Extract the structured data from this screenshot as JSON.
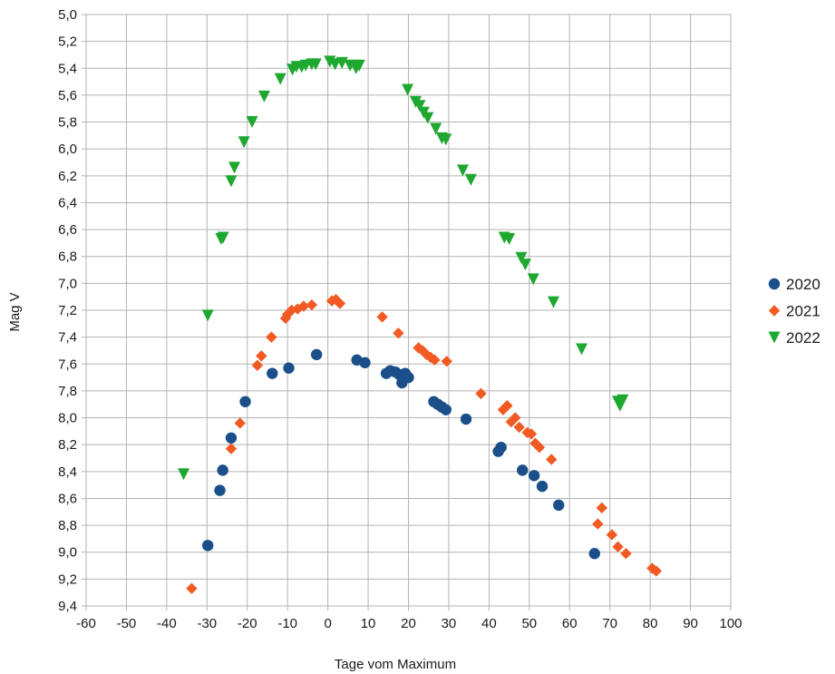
{
  "chart_data": {
    "type": "scatter",
    "xlabel": "Tage vom Maximum",
    "ylabel": "Mag V",
    "xlim": [
      -60,
      100
    ],
    "ylim": [
      5.0,
      9.4
    ],
    "y_inverted": true,
    "grid": true,
    "legend_position": "right",
    "x_ticks": [
      "-60",
      "-50",
      "-40",
      "-30",
      "-20",
      "-10",
      "0",
      "10",
      "20",
      "30",
      "40",
      "50",
      "60",
      "70",
      "80",
      "90",
      "100"
    ],
    "y_ticks": [
      "5,0",
      "5,2",
      "5,4",
      "5,6",
      "5,8",
      "6,0",
      "6,2",
      "6,4",
      "6,6",
      "6,8",
      "7,0",
      "7,2",
      "7,4",
      "7,6",
      "7,8",
      "8,0",
      "8,2",
      "8,4",
      "8,6",
      "8,8",
      "9,0",
      "9,2",
      "9,4"
    ],
    "series": [
      {
        "name": "2020",
        "color": "#1a4f8a",
        "marker": "circle",
        "points": [
          [
            -29.8,
            8.95
          ],
          [
            -26.8,
            8.54
          ],
          [
            -26.1,
            8.39
          ],
          [
            -24.0,
            8.15
          ],
          [
            -20.5,
            7.88
          ],
          [
            -13.8,
            7.67
          ],
          [
            -9.7,
            7.63
          ],
          [
            -2.8,
            7.53
          ],
          [
            7.2,
            7.57
          ],
          [
            9.2,
            7.59
          ],
          [
            14.5,
            7.67
          ],
          [
            15.5,
            7.65
          ],
          [
            16.8,
            7.66
          ],
          [
            17.8,
            7.68
          ],
          [
            18.4,
            7.74
          ],
          [
            19.2,
            7.67
          ],
          [
            20.0,
            7.7
          ],
          [
            26.3,
            7.88
          ],
          [
            27.3,
            7.9
          ],
          [
            28.3,
            7.92
          ],
          [
            29.3,
            7.94
          ],
          [
            34.3,
            8.01
          ],
          [
            42.3,
            8.25
          ],
          [
            43.0,
            8.22
          ],
          [
            48.3,
            8.39
          ],
          [
            51.2,
            8.43
          ],
          [
            53.2,
            8.51
          ],
          [
            57.3,
            8.65
          ],
          [
            66.2,
            9.01
          ]
        ]
      },
      {
        "name": "2021",
        "color": "#f15a22",
        "marker": "diamond",
        "points": [
          [
            -33.8,
            9.27
          ],
          [
            -24.0,
            8.23
          ],
          [
            -21.8,
            8.04
          ],
          [
            -17.5,
            7.61
          ],
          [
            -16.5,
            7.54
          ],
          [
            -14.0,
            7.4
          ],
          [
            -10.5,
            7.26
          ],
          [
            -10.0,
            7.23
          ],
          [
            -9.0,
            7.2
          ],
          [
            -7.5,
            7.19
          ],
          [
            -6.0,
            7.17
          ],
          [
            -4.0,
            7.16
          ],
          [
            1.0,
            7.13
          ],
          [
            2.0,
            7.12
          ],
          [
            3.0,
            7.15
          ],
          [
            13.5,
            7.25
          ],
          [
            17.5,
            7.37
          ],
          [
            22.5,
            7.48
          ],
          [
            23.5,
            7.5
          ],
          [
            24.5,
            7.53
          ],
          [
            25.5,
            7.55
          ],
          [
            26.5,
            7.57
          ],
          [
            29.5,
            7.58
          ],
          [
            38.0,
            7.82
          ],
          [
            43.5,
            7.94
          ],
          [
            44.5,
            7.91
          ],
          [
            45.5,
            8.03
          ],
          [
            46.5,
            8.0
          ],
          [
            47.5,
            8.07
          ],
          [
            49.5,
            8.11
          ],
          [
            50.5,
            8.12
          ],
          [
            51.5,
            8.19
          ],
          [
            52.5,
            8.22
          ],
          [
            55.5,
            8.31
          ],
          [
            67.0,
            8.79
          ],
          [
            68.0,
            8.67
          ],
          [
            70.5,
            8.87
          ],
          [
            72.0,
            8.96
          ],
          [
            74.0,
            9.01
          ],
          [
            80.5,
            9.12
          ],
          [
            81.5,
            9.14
          ]
        ]
      },
      {
        "name": "2022",
        "color": "#1ea830",
        "marker": "triangle-down",
        "points": [
          [
            -35.8,
            8.42
          ],
          [
            -29.8,
            7.24
          ],
          [
            -26.5,
            6.67
          ],
          [
            -26.0,
            6.66
          ],
          [
            -24.0,
            6.24
          ],
          [
            -23.2,
            6.14
          ],
          [
            -20.8,
            5.95
          ],
          [
            -18.8,
            5.8
          ],
          [
            -15.8,
            5.61
          ],
          [
            -11.8,
            5.48
          ],
          [
            -8.8,
            5.41
          ],
          [
            -7.8,
            5.39
          ],
          [
            -6.5,
            5.39
          ],
          [
            -5.5,
            5.38
          ],
          [
            -4.0,
            5.37
          ],
          [
            -3.0,
            5.37
          ],
          [
            0.5,
            5.35
          ],
          [
            1.8,
            5.37
          ],
          [
            3.5,
            5.36
          ],
          [
            5.5,
            5.38
          ],
          [
            7.0,
            5.4
          ],
          [
            7.8,
            5.38
          ],
          [
            19.8,
            5.56
          ],
          [
            21.8,
            5.65
          ],
          [
            22.8,
            5.68
          ],
          [
            23.8,
            5.73
          ],
          [
            24.8,
            5.77
          ],
          [
            26.8,
            5.85
          ],
          [
            28.3,
            5.92
          ],
          [
            29.3,
            5.93
          ],
          [
            33.5,
            6.16
          ],
          [
            35.5,
            6.23
          ],
          [
            43.8,
            6.66
          ],
          [
            45.0,
            6.67
          ],
          [
            48.0,
            6.81
          ],
          [
            49.0,
            6.86
          ],
          [
            51.0,
            6.97
          ],
          [
            56.0,
            7.14
          ],
          [
            63.0,
            7.49
          ],
          [
            72.0,
            7.88
          ],
          [
            72.5,
            7.91
          ],
          [
            73.2,
            7.87
          ]
        ]
      }
    ]
  }
}
